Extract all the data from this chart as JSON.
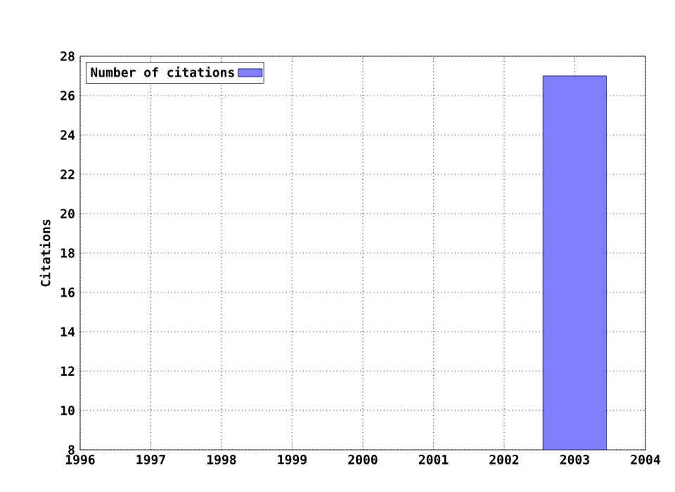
{
  "chart_data": {
    "type": "bar",
    "ylabel": "Citations",
    "x": [
      2003
    ],
    "series": [
      {
        "name": "Number of citations",
        "color": "#8080ff",
        "values": [
          27
        ]
      }
    ],
    "xlim": [
      1996,
      2004
    ],
    "xticks": [
      1996,
      1997,
      1998,
      1999,
      2000,
      2001,
      2002,
      2003,
      2004
    ],
    "ylim": [
      8,
      28
    ],
    "yticks": [
      8,
      10,
      12,
      14,
      16,
      18,
      20,
      22,
      24,
      26,
      28
    ],
    "grid": true,
    "legend": "top left"
  }
}
